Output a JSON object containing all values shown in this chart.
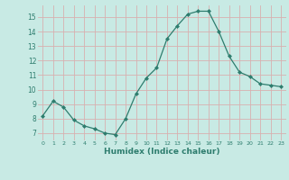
{
  "x": [
    0,
    1,
    2,
    3,
    4,
    5,
    6,
    7,
    8,
    9,
    10,
    11,
    12,
    13,
    14,
    15,
    16,
    17,
    18,
    19,
    20,
    21,
    22,
    23
  ],
  "y": [
    8.2,
    9.2,
    8.8,
    7.9,
    7.5,
    7.3,
    7.0,
    6.9,
    8.0,
    9.7,
    10.8,
    11.5,
    13.5,
    14.4,
    15.2,
    15.4,
    15.4,
    14.0,
    12.3,
    11.2,
    10.9,
    10.4,
    10.3,
    10.2
  ],
  "line_color": "#2e7d6e",
  "marker": "D",
  "marker_size": 2.0,
  "xlabel": "Humidex (Indice chaleur)",
  "ylabel_ticks": [
    7,
    8,
    9,
    10,
    11,
    12,
    13,
    14,
    15
  ],
  "ylim": [
    6.5,
    15.8
  ],
  "xlim": [
    -0.5,
    23.5
  ],
  "bg_color": "#c8eae4",
  "grid_color": "#d8b0b0",
  "tick_color": "#2e7d6e"
}
